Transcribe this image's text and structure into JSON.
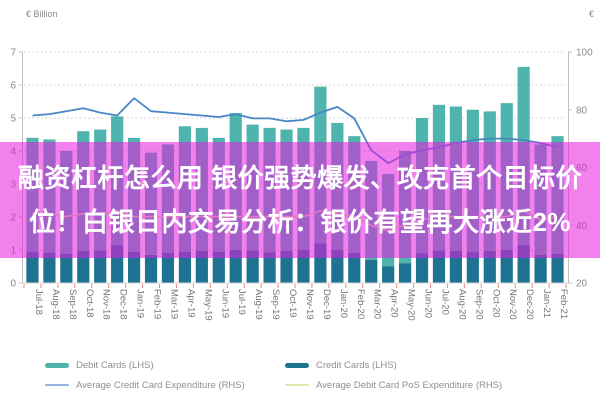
{
  "overlay": {
    "line1": "融资杠杆怎么用 银价强势爆发、攻克首个目标价",
    "line2": "位！白银日内交易分析：银价有望再大涨近2%",
    "bg_color": "rgba(234,25,222,0.55)",
    "text_color": "#ffffff"
  },
  "titles": {
    "left_axis_unit": "€ Billion",
    "right_axis_unit": "€"
  },
  "legend": {
    "items": [
      {
        "label": "Debit Cards (LHS)",
        "color": "#4fb3ae",
        "style": "thick"
      },
      {
        "label": "Credit Cards (LHS)",
        "color": "#1e7292",
        "style": "thick"
      },
      {
        "label": "Average Credit Card Expenditure (RHS)",
        "color": "#8fb4e0",
        "style": "thin"
      },
      {
        "label": "Average Debit Card PoS Expenditure (RHS)",
        "color": "#dde9ac",
        "style": "thin"
      }
    ]
  },
  "colors": {
    "bar_debit": "#4fb3ae",
    "bar_credit": "#1e7292",
    "line_avg_credit": "#4a86c5",
    "line_avg_debit_pos": "#dfe8a8",
    "gridline": "#c9c9c9",
    "axis_line": "#c0c0c0",
    "x_tick": "#e08a8a",
    "axis_text": "#8a8a8a",
    "x_label_text": "#757575"
  },
  "chart_data": {
    "type": "bar",
    "stacked": true,
    "grid": "dotted-horizontal",
    "legend_position": "bottom",
    "categories": [
      "Jul-18",
      "Aug-18",
      "Sep-18",
      "Oct-18",
      "Nov-18",
      "Dec-18",
      "Jan-19",
      "Feb-19",
      "Mar-19",
      "Apr-19",
      "May-19",
      "Jun-19",
      "Jul-19",
      "Aug-19",
      "Sep-19",
      "Oct-19",
      "Nov-19",
      "Dec-19",
      "Jan-20",
      "Feb-20",
      "Mar-20",
      "Apr-20",
      "May-20",
      "Jun-20",
      "Jul-20",
      "Aug-20",
      "Sep-20",
      "Oct-20",
      "Nov-20",
      "Dec-20",
      "Jan-21",
      "Feb-21"
    ],
    "series": [
      {
        "name": "Credit Cards (LHS)",
        "axis": "left",
        "role": "bar-bottom-segment",
        "values": [
          0.95,
          0.92,
          0.88,
          0.97,
          0.98,
          1.15,
          0.95,
          0.85,
          0.92,
          0.95,
          0.97,
          0.95,
          1.0,
          0.98,
          0.93,
          0.97,
          1.0,
          1.2,
          1.0,
          0.92,
          0.7,
          0.5,
          0.6,
          0.9,
          0.98,
          0.97,
          0.95,
          0.97,
          1.0,
          1.15,
          0.85,
          0.88
        ]
      },
      {
        "name": "Debit Cards (LHS)",
        "axis": "left",
        "role": "bar-top-segment",
        "values": [
          3.45,
          3.43,
          3.12,
          3.63,
          3.67,
          3.9,
          3.45,
          3.1,
          3.28,
          3.8,
          3.73,
          3.45,
          4.15,
          3.82,
          3.77,
          3.68,
          3.7,
          4.75,
          3.85,
          3.53,
          3.0,
          2.8,
          3.4,
          4.1,
          4.42,
          4.38,
          4.3,
          4.23,
          4.45,
          5.4,
          3.35,
          3.57
        ]
      }
    ],
    "lines": [
      {
        "name": "Average Debit Card PoS Expenditure (RHS)",
        "axis": "right",
        "values": [
          44,
          44,
          43,
          44,
          44,
          45,
          43,
          43,
          43,
          43,
          43,
          43,
          43,
          43,
          43,
          43,
          43,
          45,
          44,
          43,
          40,
          38,
          40,
          42,
          43,
          43,
          43,
          43,
          43,
          45,
          42,
          43
        ]
      },
      {
        "name": "Average Credit Card Expenditure (RHS)",
        "axis": "right",
        "values": [
          78.0,
          78.5,
          79.5,
          80.5,
          79.0,
          78.0,
          84.0,
          79.5,
          79.0,
          78.5,
          78.0,
          77.5,
          78.5,
          77.0,
          77.0,
          76.0,
          76.5,
          79.0,
          81.0,
          77.0,
          66.0,
          61.5,
          64.5,
          66.0,
          67.0,
          68.5,
          69.5,
          70.0,
          70.0,
          69.5,
          68.5,
          67.0
        ]
      }
    ],
    "title": "",
    "xlabel": "",
    "ylabel_left": "€ Billion",
    "ylabel_right": "€",
    "axes": {
      "left": {
        "min": 0,
        "max": 7,
        "ticks": [
          0,
          1,
          2,
          3,
          4,
          5,
          6,
          7
        ]
      },
      "right": {
        "min": 20,
        "max": 100,
        "ticks": [
          20,
          40,
          60,
          80,
          100
        ]
      }
    }
  }
}
